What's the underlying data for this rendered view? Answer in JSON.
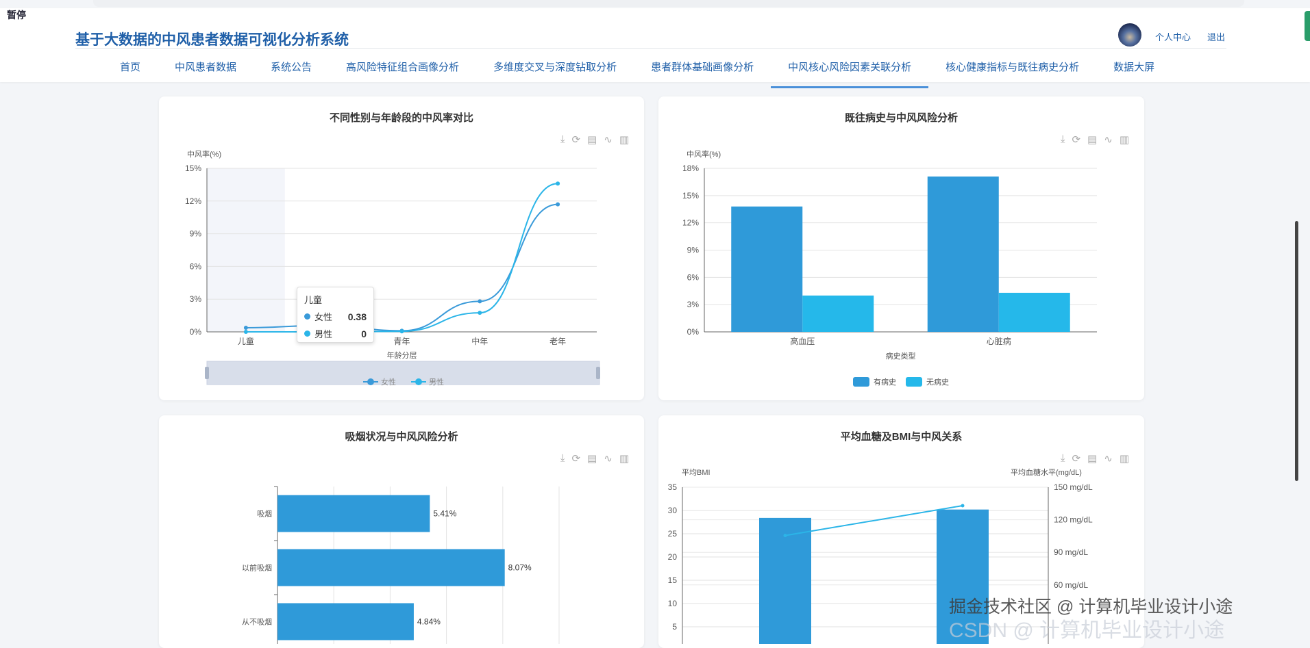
{
  "overlay_label": "暂停",
  "header": {
    "title": "基于大数据的中风患者数据可视化分析系统",
    "profile": "个人中心",
    "logout": "退出"
  },
  "nav": [
    {
      "label": "首页"
    },
    {
      "label": "中风患者数据"
    },
    {
      "label": "系统公告"
    },
    {
      "label": "高风险特征组合画像分析"
    },
    {
      "label": "多维度交叉与深度钻取分析"
    },
    {
      "label": "患者群体基础画像分析"
    },
    {
      "label": "中风核心风险因素关联分析",
      "active": true
    },
    {
      "label": "核心健康指标与既往病史分析"
    },
    {
      "label": "数据大屏"
    }
  ],
  "toolbox_icons": [
    "download-icon",
    "refresh-icon",
    "data-view-icon",
    "line-chart-icon",
    "bar-chart-icon"
  ],
  "tooltip": {
    "title": "儿童",
    "rows": [
      {
        "name": "女性",
        "value": "0.38",
        "color": "#3a9ad9"
      },
      {
        "name": "男性",
        "value": "0",
        "color": "#2bb5e8"
      }
    ]
  },
  "watermark": {
    "line1": "掘金技术社区 @ 计算机毕业设计小途",
    "line2": "CSDN @ 计算机毕业设计小途"
  },
  "chart_data": [
    {
      "type": "line",
      "title": "不同性别与年龄段的中风率对比",
      "ylabel": "中风率(%)",
      "xlabel": "年龄分层",
      "categories": [
        "儿童",
        "少年",
        "青年",
        "中年",
        "老年"
      ],
      "ylim": [
        0,
        15
      ],
      "yticks": [
        "0%",
        "3%",
        "6%",
        "9%",
        "12%",
        "15%"
      ],
      "smooth": true,
      "legend": "bottom",
      "series": [
        {
          "name": "女性",
          "values": [
            0.38,
            0.6,
            0.1,
            2.8,
            11.7
          ],
          "color": "#3a9ad9"
        },
        {
          "name": "男性",
          "values": [
            0,
            0,
            0.05,
            1.75,
            13.6
          ],
          "color": "#2bb5e8"
        }
      ]
    },
    {
      "type": "bar",
      "title": "既往病史与中风风险分析",
      "ylabel": "中风率(%)",
      "xlabel": "病史类型",
      "categories": [
        "高血压",
        "心脏病"
      ],
      "ylim": [
        0,
        18
      ],
      "yticks": [
        "0%",
        "3%",
        "6%",
        "9%",
        "12%",
        "15%",
        "18%"
      ],
      "legend": "bottom",
      "series": [
        {
          "name": "有病史",
          "values": [
            13.8,
            17.1
          ],
          "color": "#2f9ad9"
        },
        {
          "name": "无病史",
          "values": [
            4.0,
            4.3
          ],
          "color": "#25b8ea"
        }
      ]
    },
    {
      "type": "bar",
      "orientation": "horizontal",
      "title": "吸烟状况与中风风险分析",
      "categories": [
        "吸烟",
        "以前吸烟",
        "从不吸烟"
      ],
      "values": [
        5.41,
        8.07,
        4.84
      ],
      "labels": [
        "5.41%",
        "8.07%",
        "4.84%"
      ],
      "xlim": [
        0,
        10
      ],
      "color": "#2f9ad9"
    },
    {
      "type": "bar+line",
      "title": "平均血糖及BMI与中风关系",
      "ylabel_left": "平均BMI",
      "ylabel_right": "平均血糖水平(mg/dL)",
      "ylim_left": [
        0,
        35
      ],
      "yticks_left": [
        "5",
        "10",
        "15",
        "20",
        "25",
        "30",
        "35"
      ],
      "ylim_right": [
        0,
        150
      ],
      "yticks_right": [
        "60 mg/dL",
        "90 mg/dL",
        "120 mg/dL",
        "150 mg/dL"
      ],
      "bar_values": [
        28.4,
        30.2
      ],
      "line_values": [
        105.5,
        133
      ],
      "bar_color": "#2f9ad9",
      "line_color": "#2bb5e8"
    }
  ]
}
